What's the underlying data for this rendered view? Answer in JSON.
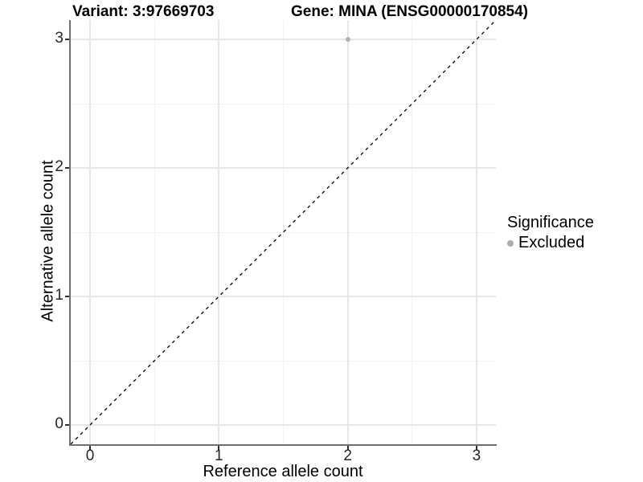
{
  "titles": {
    "variant": "Variant: 3:97669703",
    "gene": "Gene: MINA (ENSG00000170854)"
  },
  "axes": {
    "x": {
      "label": "Reference allele count",
      "ticks": [
        0,
        1,
        2,
        3
      ]
    },
    "y": {
      "label": "Alternative allele count",
      "ticks": [
        0,
        1,
        2,
        3
      ]
    }
  },
  "legend": {
    "title": "Significance",
    "items": [
      {
        "label": "Excluded",
        "color": "#aeaeae",
        "shape": "circle"
      }
    ]
  },
  "colors": {
    "background": "#ffffff",
    "axis_line": "#6f6f6f",
    "tick_mark": "#2f2f2f",
    "tick_text": "#262626",
    "grid_major": "#e7e7e7",
    "grid_minor": "#f3f3f3",
    "reference_line": "#111111",
    "excluded_point": "#b1b1b1"
  },
  "chart_data": {
    "type": "scatter",
    "title": "Variant: 3:97669703   Gene: MINA (ENSG00000170854)",
    "xlabel": "Reference allele count",
    "ylabel": "Alternative allele count",
    "xlim": [
      -0.15,
      3.15
    ],
    "ylim": [
      -0.15,
      3.15
    ],
    "x_major_ticks": [
      0,
      1,
      2,
      3
    ],
    "y_major_ticks": [
      0,
      1,
      2,
      3
    ],
    "x_minor_ticks": [
      0.5,
      1.5,
      2.5
    ],
    "y_minor_ticks": [
      0.5,
      1.5,
      2.5
    ],
    "grid": "on",
    "legend_position": "right",
    "series": [
      {
        "name": "Excluded",
        "color": "#b1b1b1",
        "marker": "circle",
        "points": [
          {
            "x": 2,
            "y": 3
          }
        ]
      }
    ],
    "reference_line": {
      "kind": "identity y=x",
      "style": "dashed",
      "color": "#111111"
    }
  }
}
